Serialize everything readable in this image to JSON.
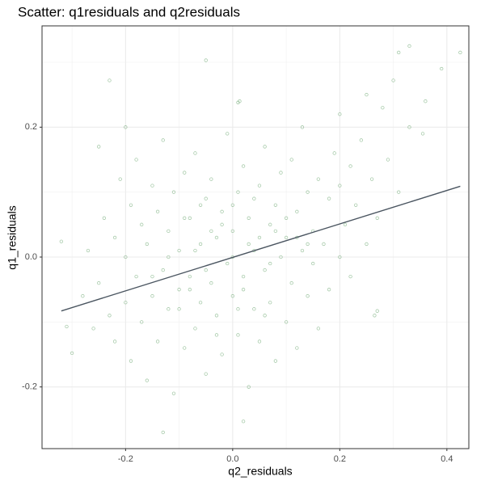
{
  "chart_data": {
    "type": "scatter",
    "title": "Scatter: q1residuals and q2residuals",
    "x_label": "q2_residuals",
    "y_label": "q1_residuals",
    "xlim": [
      -0.356,
      0.441
    ],
    "ylim": [
      -0.295,
      0.356
    ],
    "xticks": [
      -0.2,
      {
        "value": 0,
        "label": "0.0"
      },
      0.2,
      0.4
    ],
    "yticks": [
      -0.2,
      {
        "value": 0,
        "label": "0.0"
      },
      0.2
    ],
    "minor_xticks": [
      -0.3,
      -0.1,
      0.1,
      0.3
    ],
    "minor_yticks": [
      -0.1,
      0.1,
      0.3
    ],
    "grid": true,
    "color": "#5e9e62",
    "x": [
      0.33,
      0.31,
      0.425,
      -0.05,
      -0.23,
      0.39,
      0.3,
      -0.32,
      -0.13,
      0.02,
      0.27,
      0.265,
      0.36,
      0.355,
      -0.31,
      -0.3,
      -0.25,
      -0.2,
      0.01,
      0.013,
      0.2,
      0.25,
      0.28,
      -0.28,
      -0.27,
      -0.26,
      -0.25,
      -0.24,
      -0.23,
      -0.22,
      -0.22,
      -0.21,
      -0.2,
      -0.2,
      -0.19,
      -0.19,
      -0.18,
      -0.18,
      -0.17,
      -0.17,
      -0.16,
      -0.16,
      -0.15,
      -0.15,
      -0.14,
      -0.14,
      -0.13,
      -0.13,
      -0.12,
      -0.12,
      -0.11,
      -0.11,
      -0.1,
      -0.1,
      -0.09,
      -0.09,
      -0.08,
      -0.08,
      -0.07,
      -0.07,
      -0.06,
      -0.06,
      -0.05,
      -0.05,
      -0.04,
      -0.04,
      -0.03,
      -0.03,
      -0.02,
      -0.02,
      -0.01,
      -0.01,
      0.0,
      0.0,
      0.01,
      0.01,
      0.02,
      0.02,
      0.03,
      0.03,
      0.04,
      0.04,
      0.05,
      0.05,
      0.06,
      0.06,
      0.07,
      0.07,
      0.08,
      0.08,
      0.09,
      0.09,
      0.1,
      0.1,
      0.11,
      0.11,
      0.12,
      0.12,
      0.13,
      0.13,
      0.14,
      0.14,
      0.15,
      0.15,
      0.16,
      0.16,
      0.17,
      0.18,
      0.18,
      0.19,
      0.2,
      0.2,
      0.21,
      0.22,
      0.22,
      0.23,
      0.24,
      0.25,
      0.26,
      0.27,
      0.29,
      0.31,
      0.33,
      -0.05,
      0.0,
      0.03,
      -0.08,
      0.05,
      -0.02,
      0.02,
      -0.1,
      0.08,
      -0.06,
      0.06,
      -0.12,
      0.12,
      -0.03,
      0.04,
      -0.15,
      0.1,
      -0.07,
      0.07,
      0.0,
      0.01,
      -0.04,
      0.14,
      -0.09
    ],
    "values": [
      0.325,
      0.315,
      0.315,
      0.303,
      0.272,
      0.29,
      0.272,
      0.024,
      -0.27,
      -0.253,
      -0.083,
      -0.09,
      0.24,
      0.19,
      -0.107,
      -0.148,
      0.17,
      0.2,
      0.238,
      0.24,
      0.22,
      0.25,
      0.23,
      -0.06,
      0.01,
      -0.11,
      -0.04,
      0.06,
      -0.09,
      -0.13,
      0.03,
      0.12,
      -0.07,
      0.0,
      -0.16,
      0.08,
      -0.03,
      0.15,
      -0.1,
      0.05,
      -0.19,
      0.02,
      -0.06,
      0.11,
      -0.13,
      0.07,
      -0.02,
      0.18,
      -0.08,
      0.04,
      -0.21,
      0.1,
      -0.05,
      0.01,
      -0.14,
      0.13,
      -0.03,
      0.06,
      -0.11,
      0.16,
      -0.07,
      0.02,
      -0.18,
      0.09,
      -0.04,
      0.12,
      -0.09,
      0.03,
      -0.15,
      0.07,
      -0.01,
      0.19,
      -0.06,
      0.04,
      -0.12,
      0.1,
      -0.03,
      0.14,
      -0.2,
      0.06,
      -0.08,
      0.01,
      -0.13,
      0.11,
      -0.02,
      0.17,
      -0.07,
      0.05,
      -0.16,
      0.08,
      0.0,
      0.13,
      -0.1,
      0.03,
      -0.04,
      0.15,
      -0.14,
      0.07,
      0.01,
      0.2,
      -0.06,
      0.1,
      -0.01,
      0.04,
      -0.11,
      0.12,
      0.02,
      -0.05,
      0.09,
      0.16,
      0.0,
      0.11,
      0.05,
      -0.03,
      0.14,
      0.08,
      0.18,
      0.02,
      0.12,
      0.06,
      0.15,
      0.1,
      0.2,
      -0.02,
      0.0,
      0.02,
      -0.05,
      0.03,
      0.05,
      -0.05,
      -0.08,
      0.04,
      0.08,
      -0.09,
      0.0,
      0.03,
      -0.12,
      0.09,
      -0.03,
      0.06,
      0.01,
      -0.01,
      0.08,
      -0.08,
      0.04,
      0.02,
      0.06
    ],
    "fit": {
      "x": [
        -0.32,
        0.425
      ],
      "values": [
        -0.083,
        0.109
      ],
      "color": "#4a5560"
    }
  }
}
